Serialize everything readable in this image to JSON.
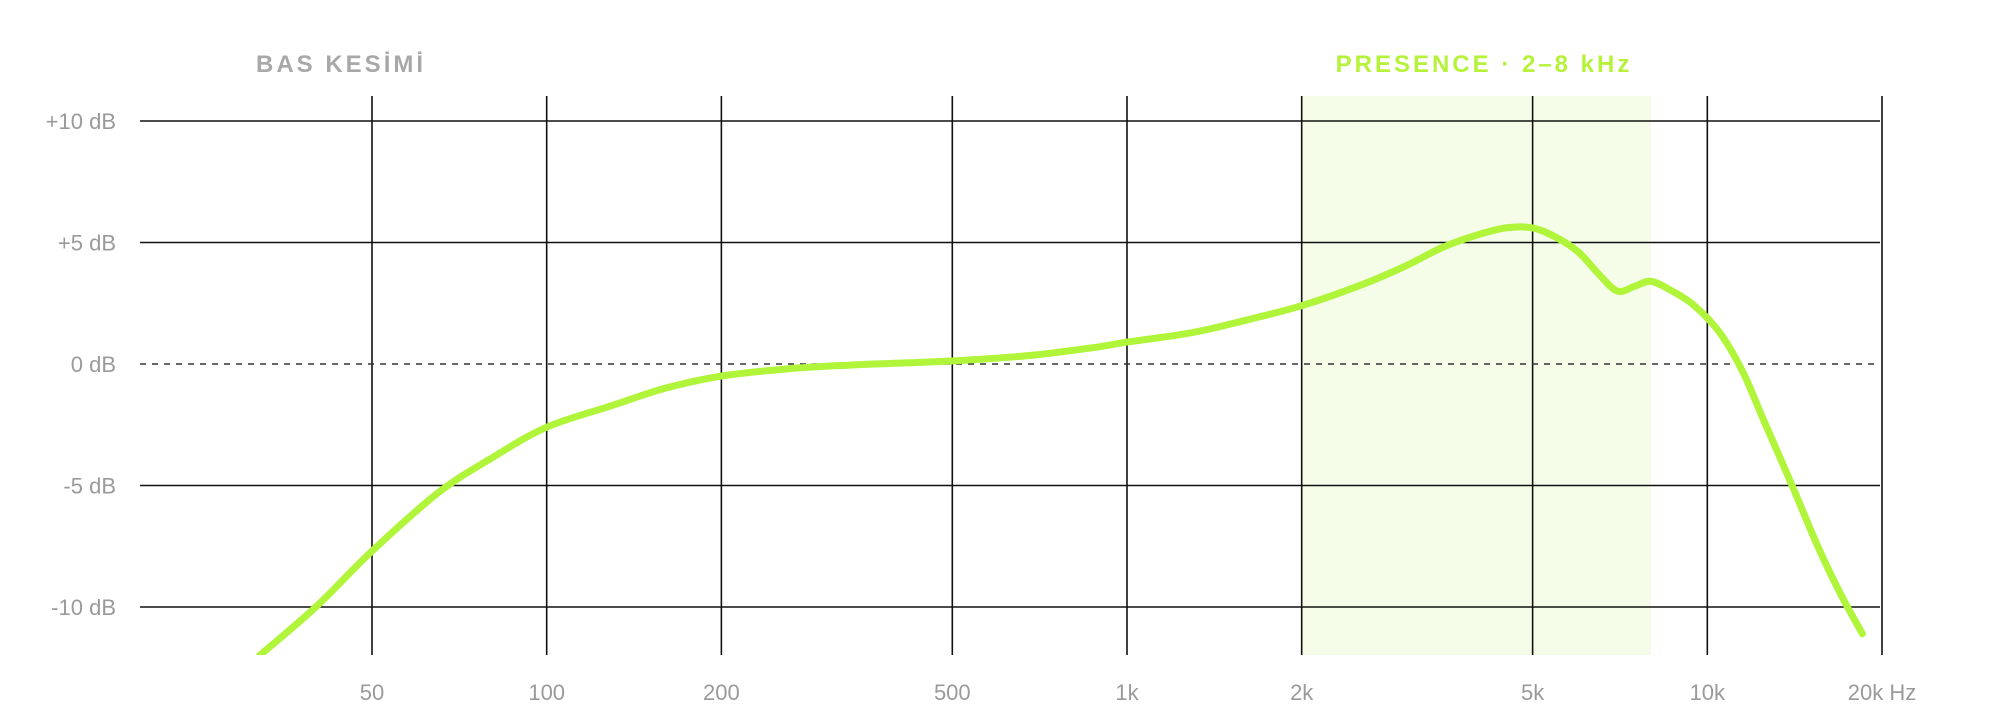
{
  "chart_data": {
    "type": "line",
    "title": "",
    "xlabel": "",
    "ylabel": "",
    "x_scale": "log",
    "xlim": [
      20,
      20000
    ],
    "ylim": [
      -12,
      11
    ],
    "x_ticks": [
      50,
      100,
      200,
      500,
      1000,
      2000,
      5000,
      10000,
      20000
    ],
    "x_tick_labels": [
      "50",
      "100",
      "200",
      "500",
      "1k",
      "2k",
      "5k",
      "10k",
      "20k Hz"
    ],
    "y_ticks": [
      10,
      5,
      0,
      -5,
      -10
    ],
    "y_tick_labels": [
      "+10 dB",
      "+5 dB",
      "0 dB",
      "-5 dB",
      "-10 dB"
    ],
    "zero_line": "dashed",
    "grid": true,
    "annotations": {
      "bass_cut": {
        "text": "BAS KESİMİ",
        "color": "#a8a8a8"
      },
      "presence": {
        "text": "PRESENCE · 2–8 kHz",
        "color": "#b6f23a",
        "x_range": [
          2000,
          8000
        ],
        "fill": "#f5fde9"
      }
    },
    "series": [
      {
        "color": "#b0f53a",
        "x": [
          32,
          40,
          50,
          65,
          80,
          100,
          130,
          160,
          200,
          260,
          330,
          420,
          520,
          680,
          860,
          1000,
          1300,
          1600,
          2000,
          2500,
          3000,
          3500,
          4000,
          4500,
          5000,
          5500,
          6000,
          6500,
          7000,
          7500,
          8000,
          8700,
          9500,
          10500,
          11500,
          12500,
          14000,
          15500,
          17000,
          18500
        ],
        "y": [
          -12,
          -10,
          -7.7,
          -5.3,
          -3.9,
          -2.6,
          -1.7,
          -1.0,
          -0.5,
          -0.2,
          -0.05,
          0.05,
          0.15,
          0.35,
          0.65,
          0.9,
          1.3,
          1.8,
          2.4,
          3.2,
          4.0,
          4.8,
          5.3,
          5.6,
          5.6,
          5.2,
          4.6,
          3.7,
          3.0,
          3.2,
          3.4,
          3.0,
          2.4,
          1.3,
          -0.3,
          -2.3,
          -5.0,
          -7.5,
          -9.5,
          -11.1
        ]
      }
    ]
  }
}
